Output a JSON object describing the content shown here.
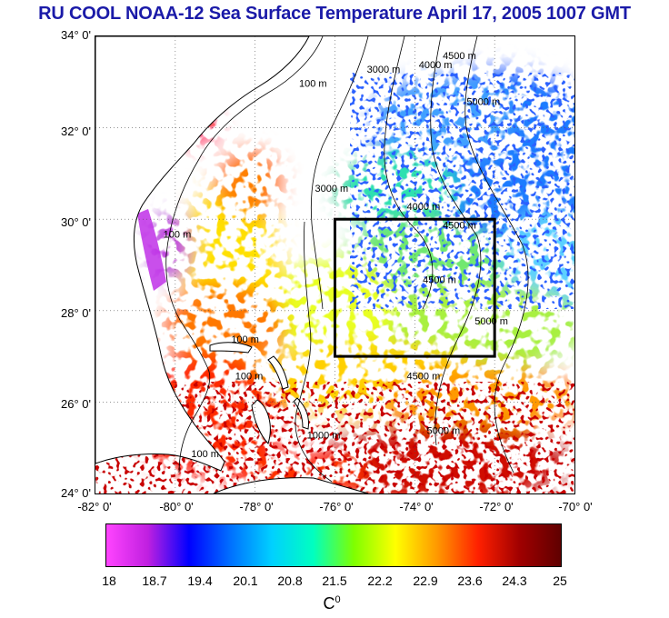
{
  "title": "RU COOL  NOAA-12 Sea Surface Temperature April 17, 2005 1007 GMT",
  "y_axis_labels": [
    "34° 0'",
    "32° 0'",
    "30° 0'",
    "28° 0'",
    "26° 0'",
    "24° 0'"
  ],
  "x_axis_labels": [
    "-82° 0'",
    "-80° 0'",
    "-78° 0'",
    "-76° 0'",
    "-74° 0'",
    "-72° 0'",
    "-70° 0'"
  ],
  "lon_range": [
    -82,
    -70
  ],
  "lat_range": [
    24,
    34
  ],
  "colorbar": {
    "min": 18,
    "max": 25,
    "tick_labels": [
      "18",
      "18.7",
      "19.4",
      "20.1",
      "20.8",
      "21.5",
      "22.2",
      "22.9",
      "23.6",
      "24.3",
      "25"
    ],
    "unit_label": "C",
    "unit_superscript": "0",
    "colors": [
      "#ff44ff",
      "#c020e0",
      "#0000ff",
      "#0070ff",
      "#00d0ff",
      "#00ffc0",
      "#7fff00",
      "#ffff00",
      "#ff9900",
      "#ff2000",
      "#a00000",
      "#600000"
    ]
  },
  "study_box": {
    "lon_min": -76,
    "lon_max": -72,
    "lat_min": 27,
    "lat_max": 30
  },
  "contour_labels": [
    {
      "text": "100 m",
      "lon": -76.9,
      "lat": 32.9
    },
    {
      "text": "100 m",
      "lon": -80.3,
      "lat": 29.6
    },
    {
      "text": "3000 m",
      "lon": -75.2,
      "lat": 33.2
    },
    {
      "text": "4000 m",
      "lon": -73.9,
      "lat": 33.3
    },
    {
      "text": "4500 m",
      "lon": -73.3,
      "lat": 33.5
    },
    {
      "text": "5000 m",
      "lon": -72.7,
      "lat": 32.5
    },
    {
      "text": "3000 m",
      "lon": -76.5,
      "lat": 30.6
    },
    {
      "text": "4000 m",
      "lon": -74.2,
      "lat": 30.2
    },
    {
      "text": "4500 m",
      "lon": -73.3,
      "lat": 29.8
    },
    {
      "text": "4500 m",
      "lon": -73.8,
      "lat": 28.6
    },
    {
      "text": "5000 m",
      "lon": -72.5,
      "lat": 27.7
    },
    {
      "text": "100 m",
      "lon": -78.6,
      "lat": 27.3
    },
    {
      "text": "100 m",
      "lon": -78.5,
      "lat": 26.5
    },
    {
      "text": "100 m",
      "lon": -79.6,
      "lat": 24.8
    },
    {
      "text": "1000 m",
      "lon": -76.7,
      "lat": 25.2
    },
    {
      "text": "4500 m",
      "lon": -74.2,
      "lat": 26.5
    },
    {
      "text": "5000 m",
      "lon": -73.7,
      "lat": 25.3
    }
  ]
}
